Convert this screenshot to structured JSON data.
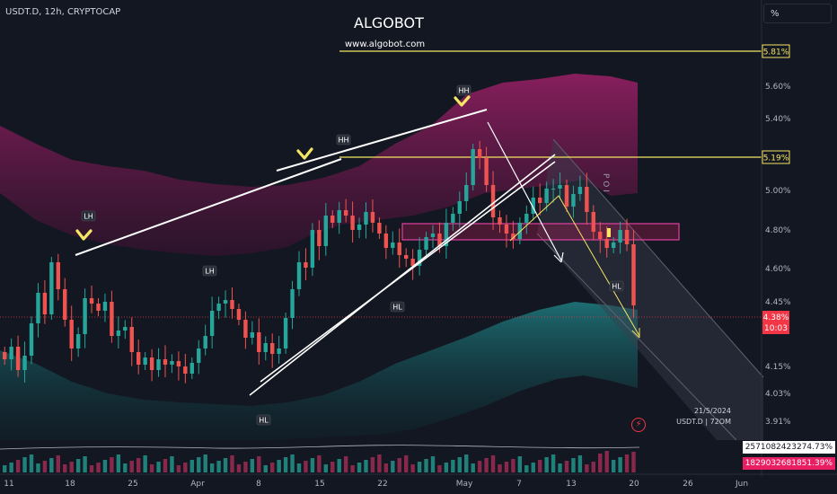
{
  "header": {
    "symbol": "USDT.D, 12h, CRYPTOCAP",
    "title": "ALGOBOT",
    "site": "www.algobot.com",
    "scale_button": "%"
  },
  "info": {
    "date": "21/5/2024",
    "ticker": "USDT.D | 72OM"
  },
  "price_axis": {
    "labels": [
      "5.60%",
      "5.40%",
      "5.00%",
      "4.80%",
      "4.60%",
      "4.45%",
      "4.15%",
      "4.03%",
      "3.91%"
    ],
    "values": [
      5.6,
      5.4,
      5.0,
      4.8,
      4.6,
      4.45,
      4.15,
      4.03,
      3.91
    ]
  },
  "time_axis": {
    "labels": [
      "11",
      "18",
      "25",
      "Apr",
      "8",
      "15",
      "22",
      "May",
      "7",
      "13",
      "20",
      "26",
      "Jun"
    ]
  },
  "level_tags": [
    {
      "label": "5.81%",
      "value": 5.81,
      "color": "#f5e663"
    },
    {
      "label": "5.19%",
      "value": 5.19,
      "color": "#f5e663"
    }
  ],
  "current_price": {
    "label": "4.38%",
    "timer": "10:03",
    "value": 4.38,
    "color": "#f23645"
  },
  "volume_tags": [
    {
      "label": "2571082423274.73%",
      "bg": "#ffffff",
      "fg": "#131722"
    },
    {
      "label": "1829032681851.39%",
      "bg": "#e91e63",
      "fg": "#ffffff"
    }
  ],
  "annotations": {
    "swing_labels": [
      "LH",
      "HH",
      "HH",
      "LH",
      "HL",
      "HL",
      "HL"
    ],
    "poi": "P O I"
  },
  "chart_data": {
    "type": "candlestick",
    "symbol": "USDT.D",
    "interval": "12h",
    "y_unit": "%",
    "ylim": [
      3.85,
      5.92
    ],
    "grid": false,
    "closes": [
      4.08,
      4.15,
      4.02,
      4.1,
      4.28,
      4.45,
      4.33,
      4.62,
      4.47,
      4.3,
      4.14,
      4.22,
      4.42,
      4.39,
      4.35,
      4.4,
      4.21,
      4.24,
      4.26,
      4.12,
      4.05,
      4.09,
      4.02,
      4.08,
      4.05,
      4.07,
      4.04,
      4.0,
      4.06,
      4.14,
      4.21,
      4.35,
      4.39,
      4.41,
      4.36,
      4.3,
      4.2,
      4.23,
      4.12,
      4.17,
      4.11,
      4.14,
      4.31,
      4.47,
      4.62,
      4.59,
      4.8,
      4.71,
      4.88,
      4.84,
      4.91,
      4.88,
      4.8,
      4.83,
      4.9,
      4.84,
      4.78,
      4.7,
      4.73,
      4.66,
      4.64,
      4.6,
      4.69,
      4.76,
      4.78,
      4.71,
      4.84,
      4.89,
      4.96,
      5.05,
      5.25,
      5.2,
      5.05,
      4.87,
      4.83,
      4.78,
      4.75,
      4.84,
      4.89,
      4.98,
      4.95,
      5.03,
      5.03,
      5.05,
      4.93,
      5.0,
      5.04,
      4.9,
      4.79,
      4.75,
      4.7,
      4.73,
      4.8,
      4.72,
      4.38
    ],
    "series": [
      {
        "name": "LH",
        "kind": "swing-label"
      },
      {
        "name": "HH",
        "kind": "swing-label"
      },
      {
        "name": "HL",
        "kind": "swing-label"
      }
    ],
    "levels": [
      5.81,
      5.19
    ],
    "zone": [
      4.76,
      4.84
    ],
    "current": 4.38
  },
  "colors": {
    "up": "#26a69a",
    "down": "#ef5350",
    "upper_band": "#7b1a52",
    "lower_band": "#1e6f74",
    "level": "#f5e663",
    "trend": "#ffffff",
    "zone": "#e040a0",
    "marker": "#f5e663"
  }
}
